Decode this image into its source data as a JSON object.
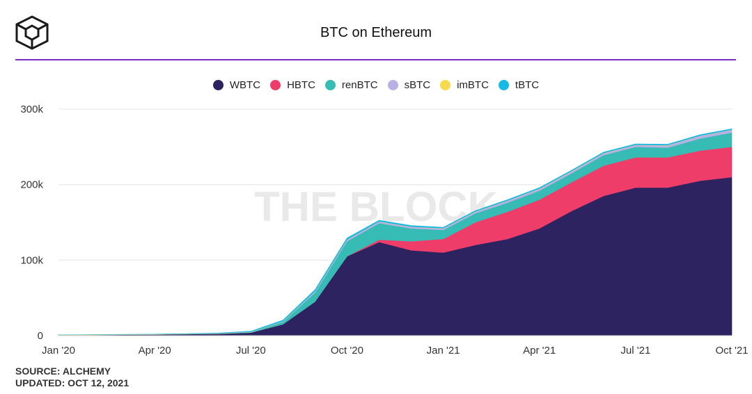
{
  "header": {
    "title": "BTC on Ethereum",
    "logo_icon": "the-block-cube-logo",
    "accent_color": "#7b2bc4"
  },
  "watermark": "THE BLOCK",
  "footer": {
    "source": "SOURCE: ALCHEMY",
    "updated": "UPDATED: OCT 12, 2021"
  },
  "chart_data": {
    "type": "area",
    "stacked": true,
    "title": "BTC on Ethereum",
    "xlabel": "",
    "ylabel": "",
    "ylim": [
      0,
      300000
    ],
    "yticks": [
      {
        "value": 0,
        "label": "0"
      },
      {
        "value": 100000,
        "label": "100k"
      },
      {
        "value": 200000,
        "label": "200k"
      },
      {
        "value": 300000,
        "label": "300k"
      }
    ],
    "xticks": [
      "Jan '20",
      "Apr '20",
      "Jul '20",
      "Oct '20",
      "Jan '21",
      "Apr '21",
      "Jul '21",
      "Oct '21"
    ],
    "grid": true,
    "legend_position": "top-center",
    "x": [
      "2020-01",
      "2020-02",
      "2020-03",
      "2020-04",
      "2020-05",
      "2020-06",
      "2020-07",
      "2020-08",
      "2020-09",
      "2020-10",
      "2020-11",
      "2020-12",
      "2021-01",
      "2021-02",
      "2021-03",
      "2021-04",
      "2021-05",
      "2021-06",
      "2021-07",
      "2021-08",
      "2021-09",
      "2021-10"
    ],
    "series": [
      {
        "name": "WBTC",
        "color": "#2c2360",
        "values": [
          500,
          800,
          1200,
          1500,
          2000,
          2500,
          4000,
          15000,
          45000,
          105000,
          124000,
          113000,
          110000,
          120000,
          128000,
          142000,
          165000,
          185000,
          196000,
          196000,
          205000,
          210000
        ]
      },
      {
        "name": "HBTC",
        "color": "#ee3d68",
        "values": [
          0,
          0,
          0,
          0,
          0,
          0,
          0,
          0,
          0,
          0,
          3000,
          12000,
          18000,
          30000,
          36000,
          38000,
          38000,
          40000,
          40000,
          40000,
          40000,
          40000
        ]
      },
      {
        "name": "renBTC",
        "color": "#36bcb4",
        "values": [
          0,
          0,
          0,
          0,
          0,
          0,
          500,
          3000,
          12000,
          20000,
          22000,
          17000,
          12000,
          12000,
          12000,
          12000,
          12000,
          14000,
          14000,
          13000,
          16000,
          19000
        ]
      },
      {
        "name": "sBTC",
        "color": "#b9b0e4",
        "values": [
          200,
          200,
          200,
          200,
          200,
          200,
          300,
          700,
          1500,
          2000,
          2000,
          2000,
          2000,
          2000,
          2500,
          2500,
          2500,
          2500,
          2500,
          3000,
          3500,
          3500
        ]
      },
      {
        "name": "imBTC",
        "color": "#f6d94c",
        "values": [
          300,
          300,
          300,
          300,
          300,
          300,
          300,
          300,
          300,
          300,
          300,
          300,
          300,
          300,
          300,
          300,
          300,
          300,
          300,
          300,
          300,
          300
        ]
      },
      {
        "name": "tBTC",
        "color": "#17b9e6",
        "values": [
          0,
          0,
          0,
          0,
          300,
          500,
          800,
          1500,
          2000,
          2000,
          1500,
          1500,
          1200,
          1200,
          1200,
          1200,
          1200,
          1200,
          1200,
          1200,
          1200,
          1200
        ]
      }
    ]
  }
}
